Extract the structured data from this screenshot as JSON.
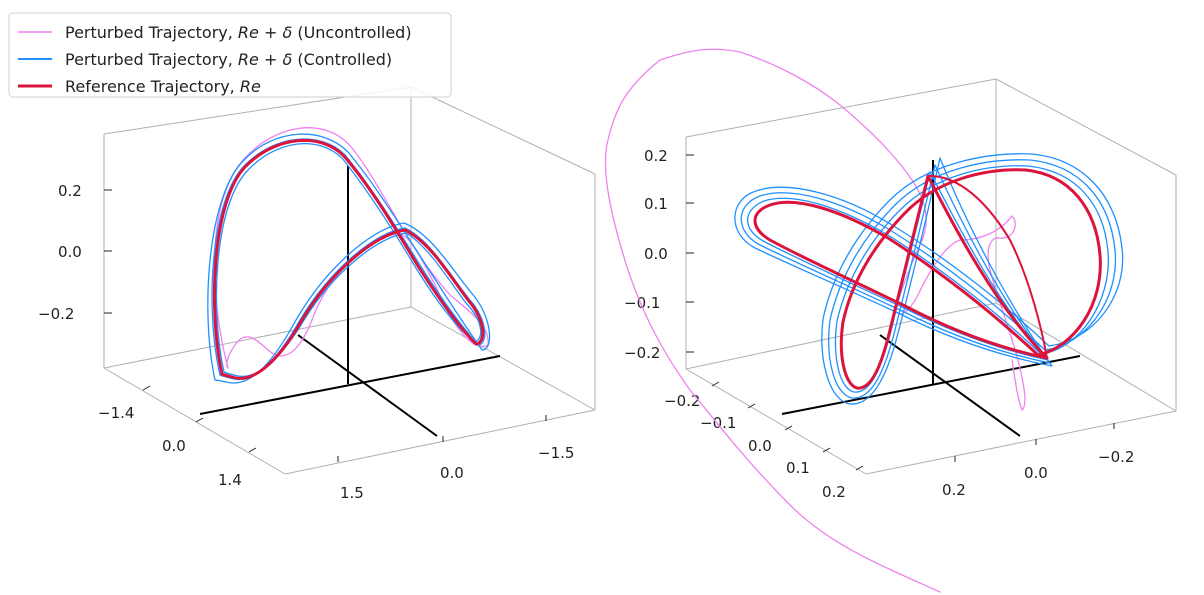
{
  "legend": {
    "items": [
      {
        "prefix": "Perturbed Trajectory, ",
        "math": "Re",
        "op": " + ",
        "sym": "δ",
        "suffix": "  (Uncontrolled)",
        "color": "#ee82ee"
      },
      {
        "prefix": "Perturbed Trajectory, ",
        "math": "Re",
        "op": " + ",
        "sym": "δ",
        "suffix": "  (Controlled)",
        "color": "#1e90ff"
      },
      {
        "prefix": "Reference Trajectory, ",
        "math": "Re",
        "op": "",
        "sym": "",
        "suffix": "",
        "color": "#dc143c"
      }
    ]
  },
  "chart_data": [
    {
      "type": "line3d",
      "title": "",
      "series": [
        {
          "name": "Perturbed Trajectory, Re + δ (Uncontrolled)",
          "color": "#ee82ee"
        },
        {
          "name": "Perturbed Trajectory, Re + δ (Controlled)",
          "color": "#1e90ff"
        },
        {
          "name": "Reference Trajectory, Re",
          "color": "#dc143c"
        }
      ],
      "z_ticks": [
        "0.2",
        "0.0",
        "−0.2"
      ],
      "x_ticks": [
        "−1.4",
        "0.0",
        "1.4"
      ],
      "y_ticks": [
        "1.5",
        "0.0",
        "−1.5"
      ],
      "xlim": [
        -2.0,
        2.0
      ],
      "ylim": [
        -2.0,
        2.0
      ],
      "zlim": [
        -0.35,
        0.35
      ]
    },
    {
      "type": "line3d",
      "title": "",
      "series": [
        {
          "name": "Perturbed Trajectory, Re + δ (Uncontrolled)",
          "color": "#ee82ee"
        },
        {
          "name": "Perturbed Trajectory, Re + δ (Controlled)",
          "color": "#1e90ff"
        },
        {
          "name": "Reference Trajectory, Re",
          "color": "#dc143c"
        }
      ],
      "z_ticks": [
        "0.2",
        "0.1",
        "0.0",
        "−0.1",
        "−0.2"
      ],
      "x_ticks": [
        "−0.2",
        "−0.1",
        "0.0",
        "0.1",
        "0.2"
      ],
      "y_ticks": [
        "0.2",
        "0.0",
        "−0.2"
      ],
      "xlim": [
        -0.25,
        0.25
      ],
      "ylim": [
        -0.3,
        0.3
      ],
      "zlim": [
        -0.25,
        0.25
      ]
    }
  ]
}
